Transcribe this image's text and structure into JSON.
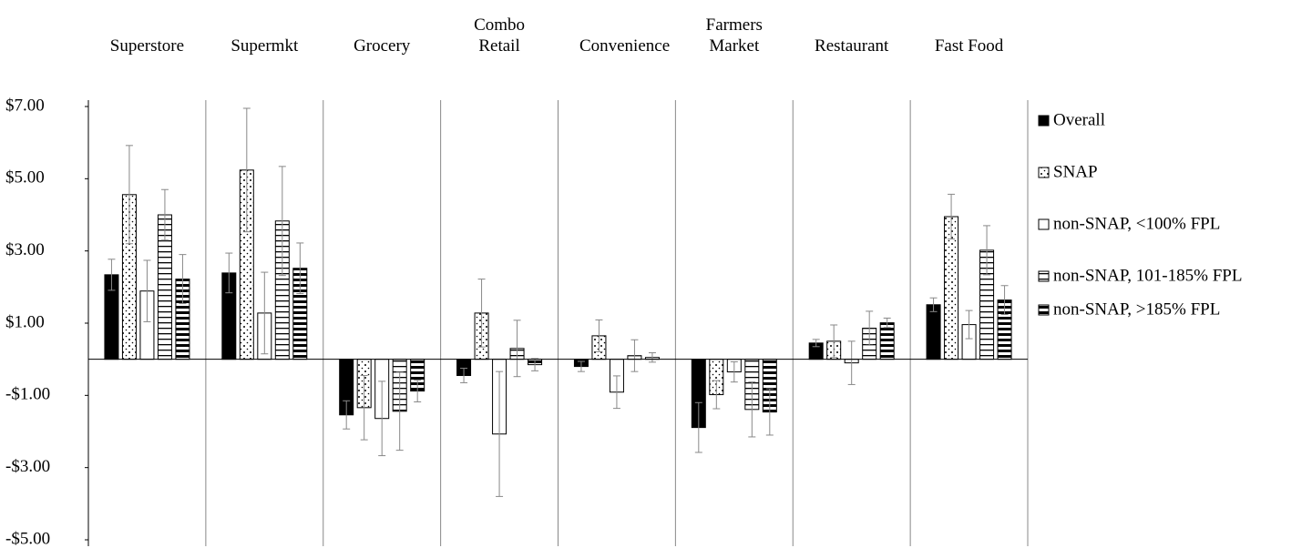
{
  "chart_data": {
    "type": "bar",
    "categories": [
      "Superstore",
      "Supermkt",
      "Grocery",
      "Combo Retail",
      "Convenience",
      "Farmers Market",
      "Restaurant",
      "Fast Food"
    ],
    "series": [
      {
        "name": "Overall",
        "color": "#000000",
        "pattern": "solid",
        "values": [
          2.34,
          2.39,
          -1.54,
          -0.45,
          -0.2,
          -1.89,
          0.45,
          1.51
        ],
        "errors": [
          0.43,
          0.55,
          0.39,
          0.2,
          0.14,
          0.69,
          0.1,
          0.19
        ]
      },
      {
        "name": "SNAP",
        "color": "#000000",
        "pattern": "dots",
        "values": [
          4.56,
          5.24,
          -1.34,
          1.28,
          0.65,
          -0.98,
          0.5,
          3.95
        ],
        "errors": [
          1.36,
          1.71,
          0.89,
          0.94,
          0.44,
          0.39,
          0.45,
          0.62
        ]
      },
      {
        "name": "non-SNAP, <100% FPL",
        "color": "#000000",
        "pattern": "none",
        "values": [
          1.89,
          1.28,
          -1.64,
          -2.07,
          -0.91,
          -0.35,
          -0.1,
          0.96
        ],
        "errors": [
          0.85,
          1.13,
          1.03,
          1.73,
          0.45,
          0.28,
          0.6,
          0.39
        ]
      },
      {
        "name": "non-SNAP, 101-185% FPL",
        "color": "#000000",
        "pattern": "hlines",
        "values": [
          4.0,
          3.83,
          -1.44,
          0.3,
          0.1,
          -1.39,
          0.86,
          3.02
        ],
        "errors": [
          0.7,
          1.51,
          1.08,
          0.78,
          0.44,
          0.76,
          0.47,
          0.68
        ]
      },
      {
        "name": "non-SNAP, >185% FPL",
        "color": "#000000",
        "pattern": "thick-hlines",
        "values": [
          2.22,
          2.52,
          -0.88,
          -0.15,
          0.05,
          -1.46,
          1.01,
          1.64
        ],
        "errors": [
          0.68,
          0.7,
          0.3,
          0.17,
          0.13,
          0.64,
          0.13,
          0.4
        ]
      }
    ],
    "ylim": [
      -5,
      7
    ],
    "yticks": [
      {
        "value": 7,
        "label": "$7.00"
      },
      {
        "value": 5,
        "label": "$5.00"
      },
      {
        "value": 3,
        "label": "$3.00"
      },
      {
        "value": 1,
        "label": "$1.00"
      },
      {
        "value": -1,
        "label": "-$1.00"
      },
      {
        "value": -3,
        "label": "-$3.00"
      },
      {
        "value": -5,
        "label": "-$5.00"
      }
    ],
    "error_color": "#888888"
  }
}
